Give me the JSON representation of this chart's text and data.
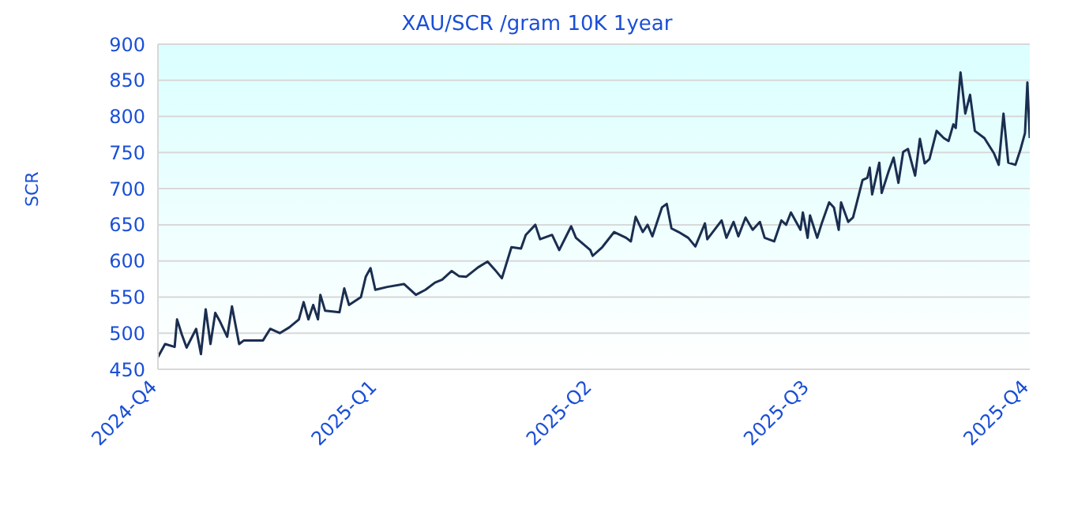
{
  "chart_data": {
    "type": "line",
    "title": "XAU/SCR /gram 10K 1year",
    "ylabel": "SCR",
    "x": [
      "2024-10-01",
      "2024-10-04",
      "2024-10-08",
      "2024-10-09",
      "2024-10-11",
      "2024-10-13",
      "2024-10-17",
      "2024-10-19",
      "2024-10-21",
      "2024-10-23",
      "2024-10-25",
      "2024-10-27",
      "2024-10-30",
      "2024-11-01",
      "2024-11-04",
      "2024-11-06",
      "2024-11-14",
      "2024-11-17",
      "2024-11-21",
      "2024-11-25",
      "2024-11-29",
      "2024-12-01",
      "2024-12-03",
      "2024-12-05",
      "2024-12-07",
      "2024-12-08",
      "2024-12-10",
      "2024-12-16",
      "2024-12-18",
      "2024-12-20",
      "2024-12-25",
      "2024-12-27",
      "2024-12-29",
      "2024-12-31",
      "2025-01-05",
      "2025-01-12",
      "2025-01-17",
      "2025-01-21",
      "2025-01-25",
      "2025-01-28",
      "2025-02-01",
      "2025-02-04",
      "2025-02-07",
      "2025-02-12",
      "2025-02-16",
      "2025-02-19",
      "2025-02-22",
      "2025-02-26",
      "2025-03-02",
      "2025-03-04",
      "2025-03-08",
      "2025-03-10",
      "2025-03-15",
      "2025-03-18",
      "2025-03-23",
      "2025-03-25",
      "2025-03-31",
      "2025-04-01",
      "2025-04-05",
      "2025-04-10",
      "2025-04-15",
      "2025-04-17",
      "2025-04-19",
      "2025-04-22",
      "2025-04-24",
      "2025-04-26",
      "2025-04-30",
      "2025-05-02",
      "2025-05-04",
      "2025-05-07",
      "2025-05-11",
      "2025-05-14",
      "2025-05-18",
      "2025-05-19",
      "2025-05-25",
      "2025-05-27",
      "2025-05-30",
      "2025-06-01",
      "2025-06-04",
      "2025-06-07",
      "2025-06-10",
      "2025-06-12",
      "2025-06-16",
      "2025-06-19",
      "2025-06-21",
      "2025-06-23",
      "2025-06-27",
      "2025-06-28",
      "2025-06-30",
      "2025-07-01",
      "2025-07-04",
      "2025-07-06",
      "2025-07-09",
      "2025-07-11",
      "2025-07-13",
      "2025-07-14",
      "2025-07-17",
      "2025-07-19",
      "2025-07-23",
      "2025-07-25",
      "2025-07-26",
      "2025-07-27",
      "2025-07-30",
      "2025-07-31",
      "2025-08-03",
      "2025-08-05",
      "2025-08-07",
      "2025-08-09",
      "2025-08-11",
      "2025-08-14",
      "2025-08-16",
      "2025-08-18",
      "2025-08-20",
      "2025-08-23",
      "2025-08-26",
      "2025-08-28",
      "2025-08-30",
      "2025-08-31",
      "2025-09-02",
      "2025-09-04",
      "2025-09-06",
      "2025-09-08",
      "2025-09-12",
      "2025-09-16",
      "2025-09-18",
      "2025-09-20",
      "2025-09-22",
      "2025-09-25",
      "2025-09-27",
      "2025-09-29",
      "2025-09-30",
      "2025-10-01"
    ],
    "series": [
      {
        "color": "#1a2e50",
        "values": [
          467,
          485,
          481,
          519,
          498,
          480,
          506,
          471,
          533,
          485,
          528,
          516,
          495,
          537,
          485,
          490,
          490,
          506,
          500,
          508,
          519,
          543,
          519,
          539,
          519,
          553,
          531,
          529,
          562,
          539,
          550,
          578,
          590,
          560,
          564,
          568,
          553,
          560,
          570,
          574,
          586,
          579,
          578,
          591,
          599,
          588,
          576,
          619,
          617,
          636,
          650,
          630,
          636,
          615,
          648,
          632,
          615,
          607,
          619,
          640,
          632,
          627,
          661,
          640,
          650,
          634,
          674,
          679,
          645,
          640,
          632,
          620,
          652,
          630,
          656,
          632,
          654,
          634,
          660,
          643,
          654,
          632,
          627,
          656,
          650,
          667,
          643,
          667,
          632,
          663,
          632,
          653,
          681,
          674,
          643,
          681,
          654,
          660,
          712,
          715,
          729,
          692,
          736,
          694,
          725,
          743,
          708,
          751,
          755,
          718,
          769,
          735,
          741,
          780,
          770,
          766,
          789,
          784,
          861,
          804,
          830,
          780,
          770,
          749,
          733,
          804,
          736,
          733,
          753,
          777,
          847,
          770
        ]
      }
    ],
    "xlim": [
      "2024-10-01",
      "2025-10-01"
    ],
    "xticks": [
      {
        "value": "2024-10-01",
        "label": "2024-Q4"
      },
      {
        "value": "2025-01-01",
        "label": "2025-Q1"
      },
      {
        "value": "2025-04-01",
        "label": "2025-Q2"
      },
      {
        "value": "2025-07-01",
        "label": "2025-Q3"
      },
      {
        "value": "2025-10-01",
        "label": "2025-Q4"
      }
    ],
    "ylim": [
      450,
      900
    ],
    "yticks": [
      450,
      500,
      550,
      600,
      650,
      700,
      750,
      800,
      850,
      900
    ],
    "grid": "y",
    "legend": false,
    "marker": "none",
    "line_style": "solid"
  }
}
